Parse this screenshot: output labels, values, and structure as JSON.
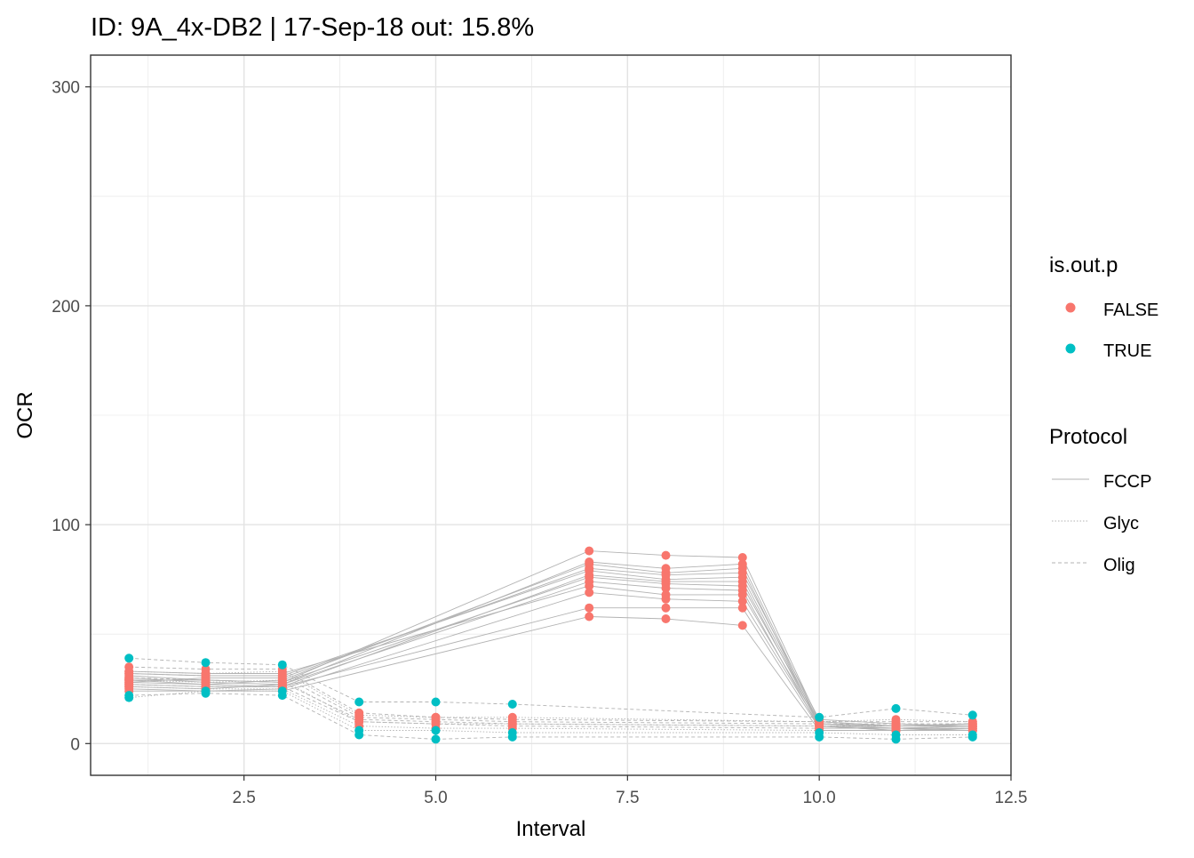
{
  "chart_data": {
    "type": "line",
    "title": "ID: 9A_4x-DB2 | 17-Sep-18   out: 15.8%",
    "xlabel": "Interval",
    "ylabel": "OCR",
    "xlim": [
      0.5,
      12.5
    ],
    "ylim": [
      -14.5,
      314.5
    ],
    "x_ticks": [
      2.5,
      5.0,
      7.5,
      10.0,
      12.5
    ],
    "x_tick_labels": [
      "2.5",
      "5.0",
      "7.5",
      "10.0",
      "12.5"
    ],
    "y_ticks": [
      0,
      100,
      200,
      300
    ],
    "y_tick_labels": [
      "0",
      "100",
      "200",
      "300"
    ],
    "grid": true,
    "legend_position": "right",
    "colors": {
      "FALSE": "#F8766D",
      "TRUE": "#00BFC4",
      "line": "#b3b3b3"
    },
    "legends": [
      {
        "title": "is.out.p",
        "entries": [
          {
            "label": "FALSE",
            "color": "#F8766D"
          },
          {
            "label": "TRUE",
            "color": "#00BFC4"
          }
        ]
      },
      {
        "title": "Protocol",
        "entries": [
          {
            "label": "FCCP",
            "dash": "solid"
          },
          {
            "label": "Glyc",
            "dash": "dotted"
          },
          {
            "label": "Olig",
            "dash": "dashed"
          }
        ]
      }
    ],
    "x": [
      1,
      2,
      3,
      4,
      5,
      6,
      7,
      8,
      9,
      10,
      11,
      12
    ],
    "series": [
      {
        "protocol": "FCCP",
        "values": [
          31,
          29,
          28,
          null,
          null,
          null,
          88,
          86,
          85,
          10,
          8,
          9
        ],
        "outlier": [
          false,
          false,
          false,
          null,
          null,
          null,
          false,
          false,
          false,
          false,
          false,
          false
        ]
      },
      {
        "protocol": "FCCP",
        "values": [
          30,
          28,
          27,
          null,
          null,
          null,
          83,
          80,
          82,
          9,
          7,
          8
        ],
        "outlier": [
          false,
          false,
          false,
          null,
          null,
          null,
          false,
          false,
          false,
          false,
          false,
          false
        ]
      },
      {
        "protocol": "FCCP",
        "values": [
          29,
          27,
          29,
          null,
          null,
          null,
          82,
          78,
          80,
          8,
          7,
          7
        ],
        "outlier": [
          false,
          false,
          false,
          null,
          null,
          null,
          false,
          false,
          false,
          false,
          false,
          false
        ]
      },
      {
        "protocol": "FCCP",
        "values": [
          28,
          30,
          30,
          null,
          null,
          null,
          80,
          77,
          78,
          11,
          9,
          8
        ],
        "outlier": [
          false,
          false,
          false,
          null,
          null,
          null,
          false,
          false,
          false,
          false,
          false,
          false
        ]
      },
      {
        "protocol": "FCCP",
        "values": [
          32,
          31,
          31,
          null,
          null,
          null,
          79,
          75,
          76,
          9,
          8,
          9
        ],
        "outlier": [
          false,
          false,
          false,
          null,
          null,
          null,
          false,
          false,
          false,
          false,
          false,
          false
        ]
      },
      {
        "protocol": "FCCP",
        "values": [
          27,
          26,
          26,
          null,
          null,
          null,
          77,
          74,
          74,
          8,
          6,
          7
        ],
        "outlier": [
          false,
          false,
          false,
          null,
          null,
          null,
          false,
          false,
          false,
          false,
          false,
          false
        ]
      },
      {
        "protocol": "FCCP",
        "values": [
          29,
          29,
          28,
          null,
          null,
          null,
          76,
          73,
          72,
          10,
          8,
          8
        ],
        "outlier": [
          false,
          false,
          false,
          null,
          null,
          null,
          false,
          false,
          false,
          false,
          false,
          false
        ]
      },
      {
        "protocol": "FCCP",
        "values": [
          26,
          25,
          27,
          null,
          null,
          null,
          74,
          71,
          70,
          7,
          7,
          6
        ],
        "outlier": [
          false,
          false,
          false,
          null,
          null,
          null,
          false,
          false,
          false,
          false,
          false,
          false
        ]
      },
      {
        "protocol": "FCCP",
        "values": [
          33,
          32,
          32,
          null,
          null,
          null,
          72,
          68,
          68,
          9,
          8,
          9
        ],
        "outlier": [
          false,
          false,
          false,
          null,
          null,
          null,
          false,
          false,
          false,
          false,
          false,
          false
        ]
      },
      {
        "protocol": "FCCP",
        "values": [
          25,
          24,
          25,
          null,
          null,
          null,
          69,
          66,
          65,
          8,
          6,
          7
        ],
        "outlier": [
          false,
          false,
          false,
          null,
          null,
          null,
          false,
          false,
          false,
          false,
          false,
          false
        ]
      },
      {
        "protocol": "FCCP",
        "values": [
          28,
          27,
          26,
          null,
          null,
          null,
          62,
          62,
          62,
          7,
          7,
          8
        ],
        "outlier": [
          false,
          false,
          false,
          null,
          null,
          null,
          false,
          false,
          false,
          false,
          false,
          false
        ]
      },
      {
        "protocol": "FCCP",
        "values": [
          24,
          24,
          24,
          null,
          null,
          null,
          58,
          57,
          54,
          6,
          6,
          6
        ],
        "outlier": [
          false,
          false,
          false,
          null,
          null,
          null,
          false,
          false,
          false,
          false,
          false,
          false
        ]
      },
      {
        "protocol": "Olig",
        "values": [
          39,
          37,
          36,
          19,
          19,
          18,
          null,
          null,
          null,
          12,
          16,
          13
        ],
        "outlier": [
          true,
          true,
          true,
          true,
          true,
          true,
          null,
          null,
          null,
          true,
          true,
          true
        ]
      },
      {
        "protocol": "Olig",
        "values": [
          35,
          34,
          34,
          14,
          12,
          11,
          null,
          null,
          null,
          10,
          10,
          10
        ],
        "outlier": [
          false,
          false,
          false,
          false,
          false,
          false,
          null,
          null,
          null,
          false,
          false,
          false
        ]
      },
      {
        "protocol": "Olig",
        "values": [
          32,
          31,
          31,
          12,
          11,
          10,
          null,
          null,
          null,
          9,
          9,
          9
        ],
        "outlier": [
          false,
          false,
          false,
          false,
          false,
          false,
          null,
          null,
          null,
          false,
          false,
          false
        ]
      },
      {
        "protocol": "Olig",
        "values": [
          30,
          29,
          28,
          11,
          10,
          9,
          null,
          null,
          null,
          8,
          8,
          8
        ],
        "outlier": [
          false,
          false,
          false,
          false,
          false,
          false,
          null,
          null,
          null,
          false,
          false,
          false
        ]
      },
      {
        "protocol": "Olig",
        "values": [
          27,
          26,
          26,
          10,
          9,
          8,
          null,
          null,
          null,
          7,
          7,
          7
        ],
        "outlier": [
          false,
          false,
          false,
          false,
          false,
          false,
          null,
          null,
          null,
          false,
          false,
          false
        ]
      },
      {
        "protocol": "Olig",
        "values": [
          22,
          23,
          22,
          4,
          2,
          3,
          null,
          null,
          null,
          3,
          2,
          3
        ],
        "outlier": [
          true,
          true,
          true,
          true,
          true,
          true,
          null,
          null,
          null,
          true,
          true,
          true
        ]
      },
      {
        "protocol": "Glyc",
        "values": [
          33,
          32,
          33,
          13,
          12,
          12,
          null,
          null,
          null,
          10,
          11,
          10
        ],
        "outlier": [
          false,
          false,
          false,
          false,
          false,
          false,
          null,
          null,
          null,
          false,
          false,
          false
        ]
      },
      {
        "protocol": "Glyc",
        "values": [
          29,
          28,
          29,
          10,
          9,
          9,
          null,
          null,
          null,
          8,
          8,
          8
        ],
        "outlier": [
          false,
          false,
          false,
          false,
          false,
          false,
          null,
          null,
          null,
          false,
          false,
          false
        ]
      },
      {
        "protocol": "Glyc",
        "values": [
          26,
          25,
          25,
          8,
          7,
          7,
          null,
          null,
          null,
          6,
          6,
          6
        ],
        "outlier": [
          false,
          false,
          false,
          false,
          false,
          false,
          null,
          null,
          null,
          false,
          false,
          false
        ]
      },
      {
        "protocol": "Glyc",
        "values": [
          21,
          24,
          24,
          6,
          6,
          5,
          null,
          null,
          null,
          5,
          4,
          4
        ],
        "outlier": [
          true,
          true,
          true,
          true,
          true,
          true,
          null,
          null,
          null,
          true,
          true,
          true
        ]
      }
    ]
  }
}
